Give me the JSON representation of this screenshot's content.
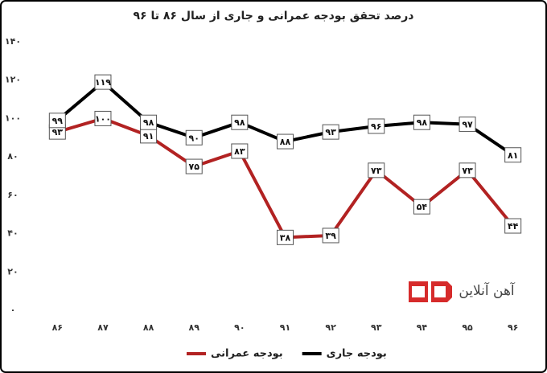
{
  "chart_data": {
    "type": "line",
    "title": "درصد تحقق بودجه عمرانی و جاری از سال ۸۶ تا ۹۶",
    "categories": [
      "۸۶",
      "۸۷",
      "۸۸",
      "۸۹",
      "۹۰",
      "۹۱",
      "۹۲",
      "۹۳",
      "۹۴",
      "۹۵",
      "۹۶"
    ],
    "series": [
      {
        "name": "بودجه عمرانی",
        "color": "#b22222",
        "values": [
          93,
          100,
          91,
          75,
          83,
          38,
          39,
          73,
          54,
          73,
          44
        ],
        "value_labels": [
          "۹۳",
          "۱۰۰",
          "۹۱",
          "۷۵",
          "۸۳",
          "۳۸",
          "۳۹",
          "۷۳",
          "۵۴",
          "۷۳",
          "۴۴"
        ]
      },
      {
        "name": "بودجه جاری",
        "color": "#000000",
        "values": [
          99,
          119,
          98,
          90,
          98,
          88,
          93,
          96,
          98,
          97,
          81
        ],
        "value_labels": [
          "۹۹",
          "۱۱۹",
          "۹۸",
          "۹۰",
          "۹۸",
          "۸۸",
          "۹۳",
          "۹۶",
          "۹۸",
          "۹۷",
          "۸۱"
        ]
      }
    ],
    "ylim": [
      0,
      140
    ],
    "yticks": [
      {
        "value": 0,
        "label": "۰"
      },
      {
        "value": 20,
        "label": "۲۰"
      },
      {
        "value": 40,
        "label": "۴۰"
      },
      {
        "value": 60,
        "label": "۶۰"
      },
      {
        "value": 80,
        "label": "۸۰"
      },
      {
        "value": 100,
        "label": "۱۰۰"
      },
      {
        "value": 120,
        "label": "۱۲۰"
      },
      {
        "value": 140,
        "label": "۱۴۰"
      }
    ],
    "grid": false,
    "legend": "bottom",
    "watermark": "آهن آنلاین"
  }
}
